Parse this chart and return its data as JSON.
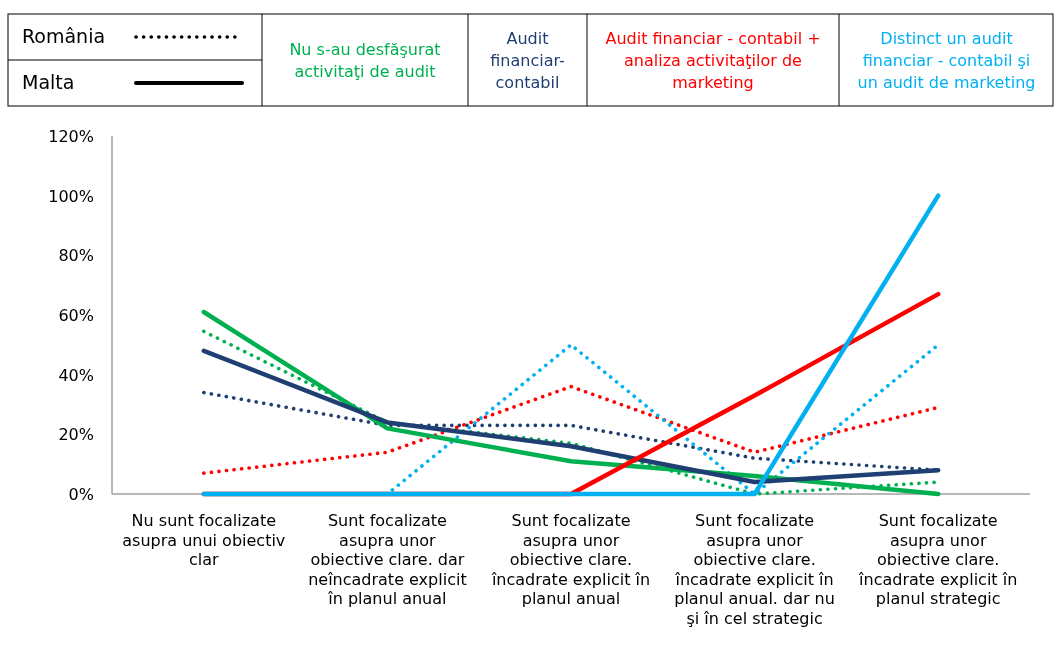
{
  "chart_data": {
    "type": "line",
    "categories": [
      "Nu sunt focalizate asupra unui obiectiv clar",
      "Sunt focalizate asupra unor obiective clare. dar neîncadrate explicit în planul anual",
      "Sunt focalizate asupra unor obiective clare. încadrate explicit în planul anual",
      "Sunt focalizate asupra unor obiective clare. încadrate explicit în planul anual. dar nu şi în cel strategic",
      "Sunt focalizate asupra unor obiective clare. încadrate explicit în planul strategic"
    ],
    "series": [
      {
        "name": "Nu s-au desfăşurat activitaţi de audit",
        "color": "#00b050",
        "line_style": "dotted",
        "values": [
          54.5,
          24,
          17,
          0,
          4
        ]
      },
      {
        "name": "Audit financiar-contabil",
        "color": "#1f3f73",
        "line_style": "dotted",
        "values": [
          34,
          23,
          23,
          12,
          8
        ]
      },
      {
        "name": "Audit financiar - contabil + analiza activitaţilor de marketing",
        "color": "#ff0000",
        "line_style": "dotted",
        "values": [
          7,
          14,
          36,
          14,
          29
        ]
      },
      {
        "name": "Distinct un audit financiar - contabil şi un audit de marketing",
        "color": "#00b0f0",
        "line_style": "dotted",
        "values": [
          0,
          0,
          50,
          0,
          50
        ]
      },
      {
        "color": "#00b050",
        "line_style": "solid",
        "values": [
          61,
          22,
          11,
          6,
          0
        ]
      },
      {
        "color": "#1f3f73",
        "line_style": "solid",
        "values": [
          48,
          24,
          16,
          4,
          8
        ]
      },
      {
        "color": "#ff0000",
        "line_style": "solid",
        "values": [
          0,
          0,
          0,
          33,
          67
        ]
      },
      {
        "color": "#00b0f0",
        "line_style": "solid",
        "values": [
          0,
          0,
          0,
          0,
          100
        ]
      }
    ],
    "annotations": [
      "România",
      "Malta"
    ],
    "ylim": [
      0,
      120
    ],
    "yticks": [
      {
        "value": 0,
        "label": "0%"
      },
      {
        "value": 20,
        "label": "20%"
      },
      {
        "value": 40,
        "label": "40%"
      },
      {
        "value": 60,
        "label": "60%"
      },
      {
        "value": 80,
        "label": "80%"
      },
      {
        "value": 100,
        "label": "100%"
      },
      {
        "value": 120,
        "label": "120%"
      }
    ],
    "grid": false,
    "legend": "top",
    "marker": "none"
  }
}
